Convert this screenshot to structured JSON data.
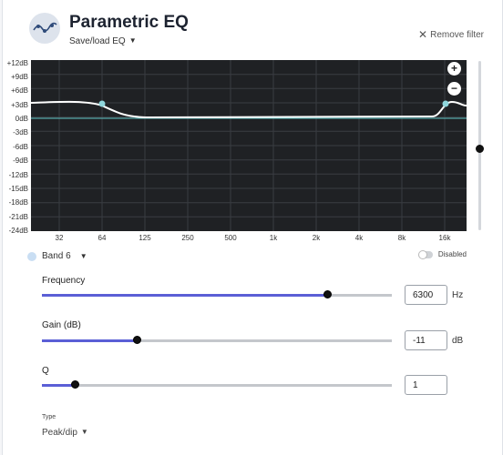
{
  "header": {
    "title": "Parametric EQ",
    "save_load": "Save/load EQ",
    "remove_filter": "Remove filter"
  },
  "graph": {
    "y_labels": [
      "+12dB",
      "+9dB",
      "+6dB",
      "+3dB",
      "0dB",
      "-3dB",
      "-6dB",
      "-9dB",
      "-12dB",
      "-15dB",
      "-18dB",
      "-21dB",
      "-24dB"
    ],
    "x_labels": [
      "32",
      "64",
      "125",
      "250",
      "500",
      "1k",
      "2k",
      "4k",
      "8k",
      "16k"
    ],
    "zoom_in": "+",
    "zoom_out": "−",
    "colors": {
      "background": "#1f2124",
      "curve": "#ffffff",
      "baseline": "#5fc6c6",
      "handle": "#8fd6dc"
    }
  },
  "band": {
    "label": "Band 6",
    "disabled_label": "Disabled"
  },
  "frequency": {
    "label": "Frequency",
    "value": "6300",
    "unit": "Hz",
    "slider_fraction": 0.815
  },
  "gain": {
    "label": "Gain (dB)",
    "value": "-11",
    "unit": "dB",
    "slider_fraction": 0.27
  },
  "q": {
    "label": "Q",
    "value": "1",
    "slider_fraction": 0.095
  },
  "type": {
    "label": "Type",
    "value": "Peak/dip"
  },
  "accent_color": "#5b5fd6"
}
